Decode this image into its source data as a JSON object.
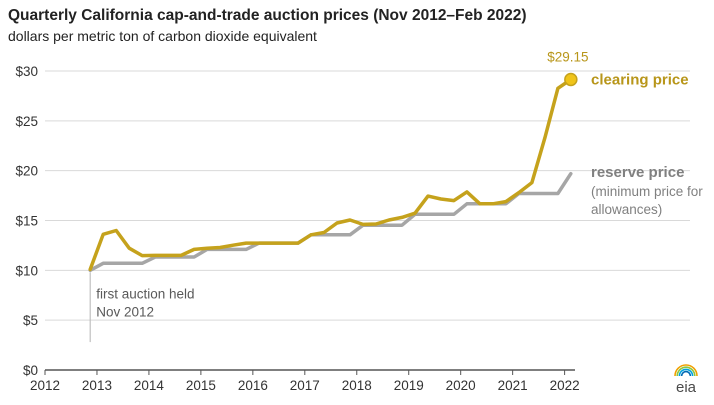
{
  "header": {
    "title": "Quarterly California cap-and-trade auction prices (Nov 2012–Feb 2022)",
    "subtitle": "dollars per metric ton of carbon dioxide equivalent"
  },
  "logo": {
    "text": "eia",
    "icon": "eia-logo-icon"
  },
  "colors": {
    "clearing": "#c5a21c",
    "reserve": "#a6a6a6",
    "grid": "#d9d9d9",
    "axis": "#555555"
  },
  "chart_data": {
    "type": "line",
    "title": "Quarterly California cap-and-trade auction prices (Nov 2012–Feb 2022)",
    "subtitle": "dollars per metric ton of carbon dioxide equivalent",
    "xlabel": "",
    "ylabel": "",
    "xlim": [
      2012,
      2022.2
    ],
    "ylim": [
      0,
      30
    ],
    "x_ticks": [
      2012,
      2013,
      2014,
      2015,
      2016,
      2017,
      2018,
      2019,
      2020,
      2021,
      2022
    ],
    "y_ticks": [
      0,
      5,
      10,
      15,
      20,
      25,
      30
    ],
    "y_tick_labels": [
      "$0",
      "$5",
      "$10",
      "$15",
      "$20",
      "$25",
      "$30"
    ],
    "grid": true,
    "series": [
      {
        "name": "clearing price",
        "x": [
          2012.87,
          2013.12,
          2013.37,
          2013.62,
          2013.87,
          2014.12,
          2014.37,
          2014.62,
          2014.87,
          2015.12,
          2015.37,
          2015.62,
          2015.87,
          2016.12,
          2016.37,
          2016.62,
          2016.87,
          2017.12,
          2017.37,
          2017.62,
          2017.87,
          2018.12,
          2018.37,
          2018.62,
          2018.87,
          2019.12,
          2019.37,
          2019.62,
          2019.87,
          2020.12,
          2020.37,
          2020.62,
          2020.87,
          2021.12,
          2021.37,
          2021.62,
          2021.87,
          2022.12
        ],
        "values": [
          10.09,
          13.62,
          14.0,
          12.22,
          11.48,
          11.5,
          11.5,
          11.5,
          12.1,
          12.21,
          12.29,
          12.52,
          12.73,
          12.73,
          12.73,
          12.73,
          12.73,
          13.57,
          13.8,
          14.75,
          15.05,
          14.61,
          14.65,
          15.05,
          15.31,
          15.73,
          17.45,
          17.16,
          17.0,
          17.87,
          16.68,
          16.68,
          16.9,
          17.8,
          18.8,
          23.3,
          28.26,
          29.15
        ],
        "end_label": "$29.15"
      },
      {
        "name": "reserve price",
        "description": [
          "(minimum price for",
          "allowances)"
        ],
        "x": [
          2012.87,
          2013.12,
          2013.87,
          2014.12,
          2014.87,
          2015.12,
          2015.87,
          2016.12,
          2016.87,
          2017.12,
          2017.87,
          2018.12,
          2018.87,
          2019.12,
          2019.87,
          2020.12,
          2020.87,
          2021.12,
          2021.87,
          2022.12
        ],
        "values": [
          10.0,
          10.71,
          10.71,
          11.34,
          11.34,
          12.1,
          12.1,
          12.73,
          12.73,
          13.57,
          13.57,
          14.53,
          14.53,
          15.62,
          15.62,
          16.68,
          16.68,
          17.71,
          17.71,
          19.7
        ]
      }
    ],
    "annotations": [
      {
        "text": [
          "first auction held",
          "Nov 2012"
        ],
        "x": 2012.87,
        "y": 10.0
      }
    ]
  }
}
